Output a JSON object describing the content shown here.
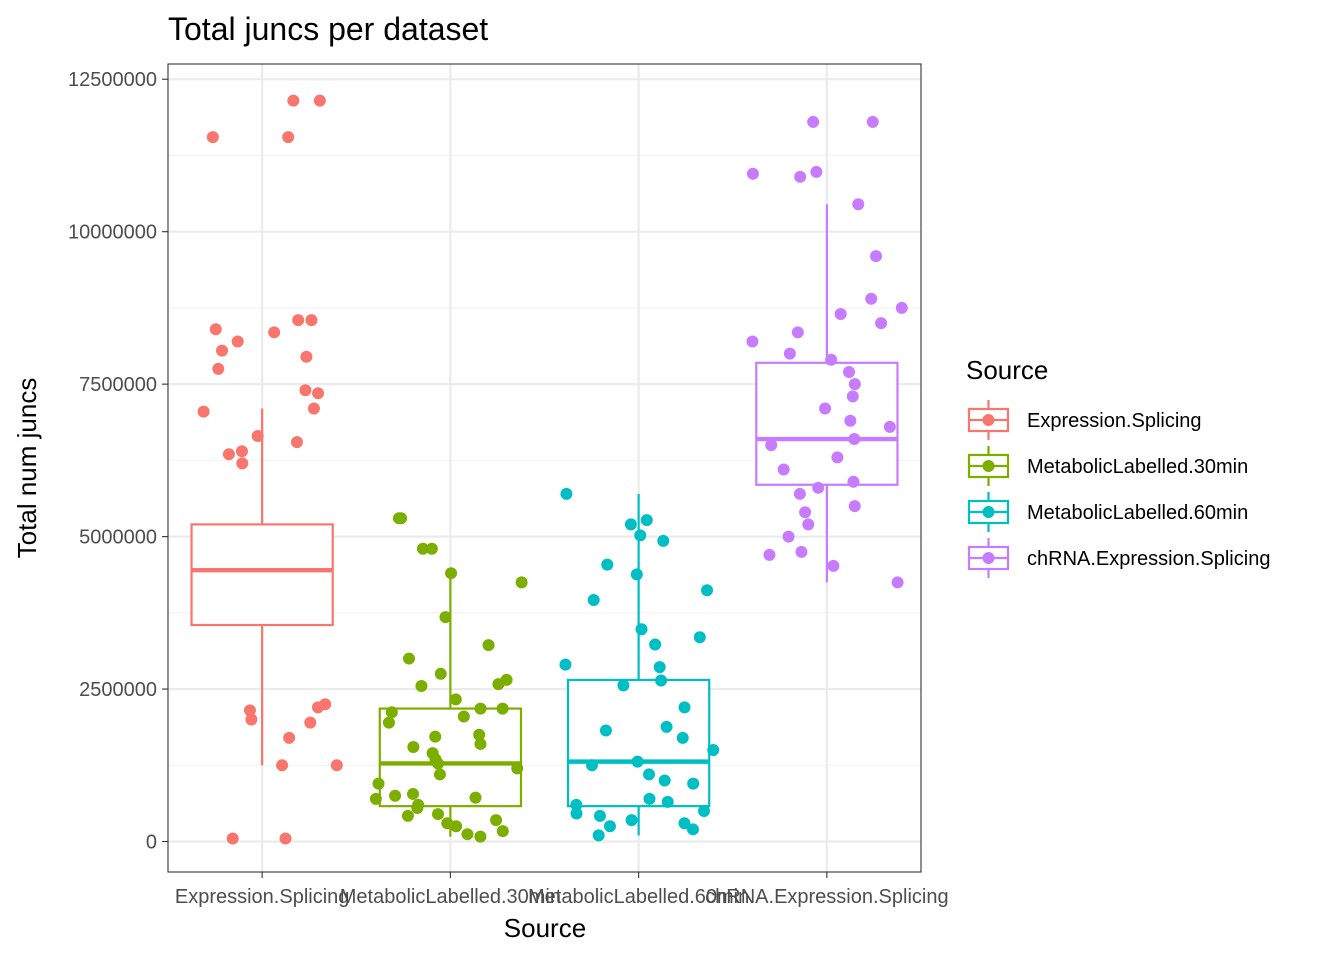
{
  "chart_data": {
    "type": "boxplot+jitter",
    "title": "Total juncs per dataset",
    "xlabel": "Source",
    "ylabel": "Total num juncs",
    "ylim": [
      -500000,
      12750000
    ],
    "y_ticks": [
      0,
      2500000,
      5000000,
      7500000,
      10000000,
      12500000
    ],
    "y_tick_labels": [
      "0",
      "2500000",
      "5000000",
      "7500000",
      "10000000",
      "12500000"
    ],
    "grid": true,
    "legend": {
      "title": "Source",
      "position": "right"
    },
    "categories": [
      "Expression.Splicing",
      "MetabolicLabelled.30min",
      "MetabolicLabelled.60min",
      "chRNA.Expression.Splicing"
    ],
    "series": [
      {
        "name": "Expression.Splicing",
        "color": "#F8766D",
        "box": {
          "lower_whisker": 1250000,
          "q1": 3550000,
          "median": 4450000,
          "q3": 5200000,
          "upper_whisker": 7100000
        },
        "points": [
          50000,
          50000,
          1250000,
          1250000,
          1700000,
          11550000,
          11550000,
          12150000,
          12150000,
          8550000,
          8550000,
          8200000,
          7950000,
          8400000,
          8350000,
          8050000,
          7750000,
          7400000,
          7350000,
          7100000,
          7050000,
          6650000,
          6550000,
          6400000,
          6350000,
          6200000,
          2250000,
          2200000,
          2150000,
          2000000,
          1950000
        ]
      },
      {
        "name": "MetabolicLabelled.30min",
        "color": "#7CAE00",
        "box": {
          "lower_whisker": 80000,
          "q1": 580000,
          "median": 1280000,
          "q3": 2180000,
          "upper_whisker": 4350000
        },
        "points": [
          5300000,
          5300000,
          4800000,
          4800000,
          4400000,
          4250000,
          3680000,
          3220000,
          3000000,
          2750000,
          2650000,
          2580000,
          2550000,
          2330000,
          2180000,
          2180000,
          2120000,
          2050000,
          1950000,
          1750000,
          1720000,
          1600000,
          1550000,
          1450000,
          1350000,
          1280000,
          1200000,
          1100000,
          950000,
          780000,
          750000,
          720000,
          700000,
          600000,
          550000,
          450000,
          420000,
          350000,
          300000,
          250000,
          170000,
          120000,
          80000
        ]
      },
      {
        "name": "MetabolicLabelled.60min",
        "color": "#00BFC4",
        "box": {
          "lower_whisker": 100000,
          "q1": 580000,
          "median": 1310000,
          "q3": 2650000,
          "upper_whisker": 5700000
        },
        "points": [
          5700000,
          5270000,
          5200000,
          5020000,
          4930000,
          4540000,
          4380000,
          4120000,
          3960000,
          3480000,
          3350000,
          3230000,
          2900000,
          2860000,
          2640000,
          2560000,
          2200000,
          1880000,
          1820000,
          1700000,
          1500000,
          1310000,
          1250000,
          1100000,
          1000000,
          950000,
          700000,
          650000,
          600000,
          500000,
          460000,
          420000,
          350000,
          300000,
          250000,
          200000,
          100000
        ]
      },
      {
        "name": "chRNA.Expression.Splicing",
        "color": "#C77CFF",
        "box": {
          "lower_whisker": 4250000,
          "q1": 5850000,
          "median": 6600000,
          "q3": 7850000,
          "upper_whisker": 10450000
        },
        "points": [
          11800000,
          11800000,
          10980000,
          10950000,
          10900000,
          10450000,
          9600000,
          8900000,
          8750000,
          8650000,
          8500000,
          8350000,
          8200000,
          8000000,
          7900000,
          7700000,
          7500000,
          7300000,
          7100000,
          6900000,
          6800000,
          6600000,
          6500000,
          6300000,
          6100000,
          5900000,
          5800000,
          5700000,
          5500000,
          5400000,
          5200000,
          5000000,
          4750000,
          4700000,
          4520000,
          4250000
        ]
      }
    ]
  }
}
